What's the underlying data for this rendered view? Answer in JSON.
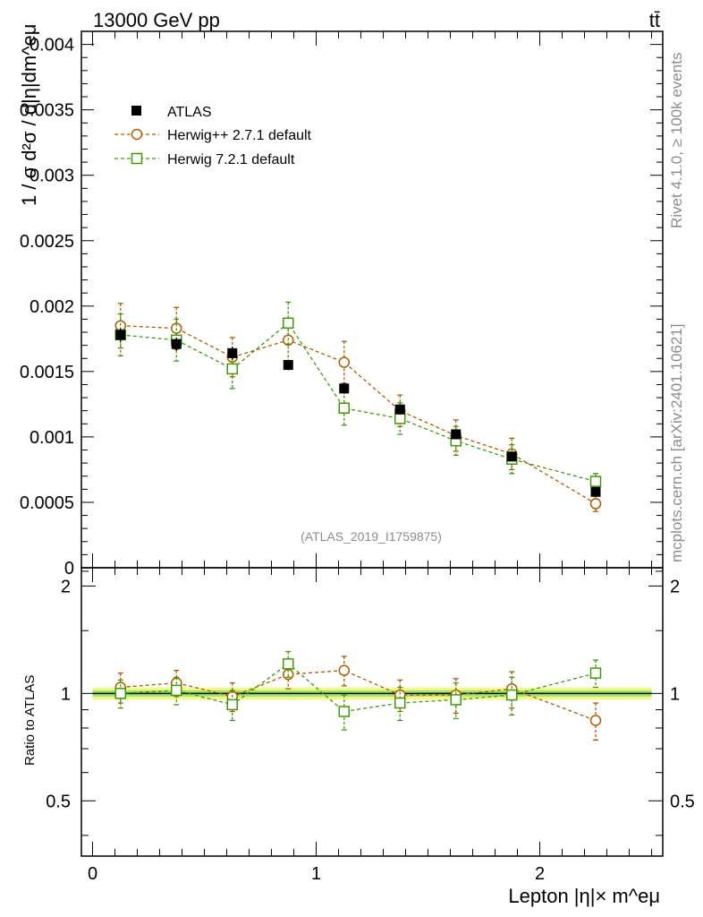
{
  "header": {
    "energy_label": "13000 GeV pp",
    "process_label": "tt̄"
  },
  "side_labels": {
    "rivet": "Rivet 4.1.0, ≥ 100k events",
    "mcplots": "mcplots.cern.ch [arXiv:2401.10621]"
  },
  "analysis_label": "(ATLAS_2019_I1759875)",
  "colors": {
    "data": "#000000",
    "herwigpp": "#b35900",
    "herwig7": "#3f9a0a",
    "band_outer": "#f5f78c",
    "band_inner": "#9be66c"
  },
  "chart_data": [
    {
      "type": "scatter",
      "title": "",
      "ylabel": "1 / σ  d²σ / d|η|dm^eμ",
      "xlabel": "Lepton |η|× m^eμ",
      "xlim": [
        -0.05,
        2.55
      ],
      "ylim": [
        0,
        0.0041
      ],
      "x_tick_labels": [
        "0",
        "1",
        "2"
      ],
      "y_tick_labels": [
        "0",
        "0.0005",
        "0.001",
        "0.0015",
        "0.002",
        "0.0025",
        "0.003",
        "0.0035",
        "0.004"
      ],
      "x": [
        0.125,
        0.375,
        0.625,
        0.875,
        1.125,
        1.375,
        1.625,
        1.875,
        2.25
      ],
      "series": [
        {
          "name": "ATLAS",
          "key": "data",
          "marker": "filled-square",
          "values": [
            0.00178,
            0.00171,
            0.00164,
            0.00155,
            0.00137,
            0.00121,
            0.00102,
            0.00085,
            0.00058
          ],
          "errors": [
            5e-05,
            5e-05,
            5e-05,
            4e-05,
            4e-05,
            4e-05,
            3e-05,
            3e-05,
            3e-05
          ]
        },
        {
          "name": "Herwig++ 2.7.1 default",
          "key": "herwigpp",
          "marker": "open-circle",
          "values": [
            0.00185,
            0.00183,
            0.00161,
            0.00174,
            0.00157,
            0.0012,
            0.00101,
            0.00087,
            0.00049
          ],
          "errors": [
            0.00017,
            0.00016,
            0.00015,
            0.00016,
            0.00016,
            0.00012,
            0.00012,
            0.00012,
            6e-05
          ]
        },
        {
          "name": "Herwig 7.2.1 default",
          "key": "herwig7",
          "marker": "open-square",
          "values": [
            0.00178,
            0.00174,
            0.00152,
            0.00187,
            0.00122,
            0.00114,
            0.00097,
            0.00083,
            0.00066
          ],
          "errors": [
            0.00016,
            0.00016,
            0.00015,
            0.00016,
            0.00013,
            0.00012,
            0.00011,
            0.00011,
            6e-05
          ]
        }
      ]
    },
    {
      "type": "scatter",
      "title": "",
      "ylabel": "Ratio to ATLAS",
      "xlabel": "Lepton |η|× m^eμ",
      "xlim": [
        -0.05,
        2.55
      ],
      "ylim": [
        0.35,
        2.25
      ],
      "y_tick_labels": [
        "0.5",
        "1",
        "2"
      ],
      "reference": 1.0,
      "band": {
        "outer": 0.04,
        "inner": 0.02
      },
      "x": [
        0.125,
        0.375,
        0.625,
        0.875,
        1.125,
        1.375,
        1.625,
        1.875,
        2.25
      ],
      "series": [
        {
          "name": "Herwig++ 2.7.1 default",
          "key": "herwigpp",
          "marker": "open-circle",
          "values": [
            1.04,
            1.07,
            0.98,
            1.13,
            1.16,
            0.99,
            0.99,
            1.03,
            0.84
          ],
          "errors": [
            0.1,
            0.09,
            0.09,
            0.1,
            0.11,
            0.1,
            0.11,
            0.12,
            0.1
          ]
        },
        {
          "name": "Herwig 7.2.1 default",
          "key": "herwig7",
          "marker": "open-square",
          "values": [
            1.0,
            1.02,
            0.93,
            1.21,
            0.89,
            0.94,
            0.96,
            0.99,
            1.14
          ],
          "errors": [
            0.09,
            0.09,
            0.09,
            0.1,
            0.1,
            0.1,
            0.11,
            0.12,
            0.1
          ]
        }
      ]
    }
  ]
}
